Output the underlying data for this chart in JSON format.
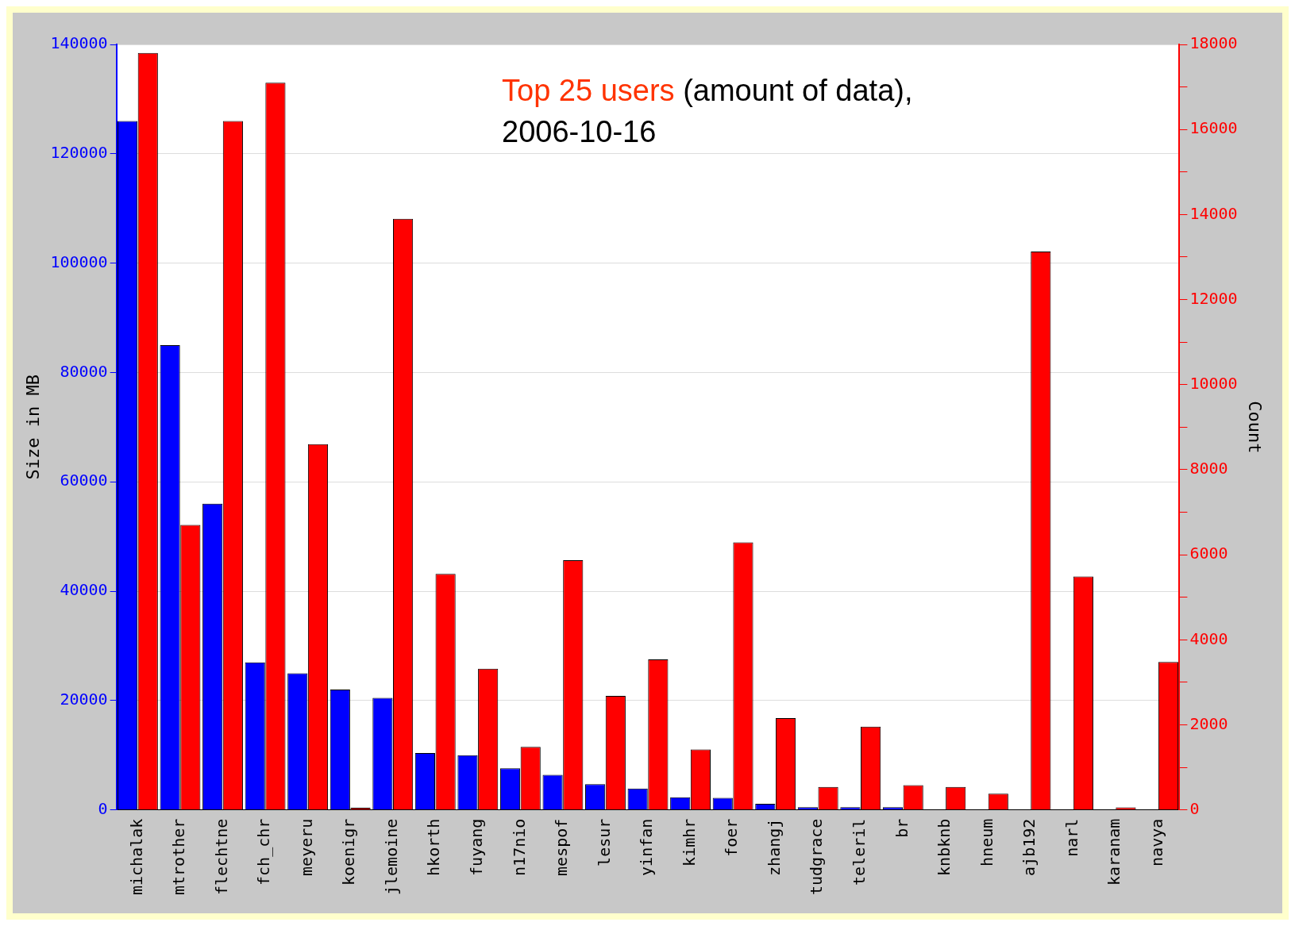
{
  "chart_data": {
    "type": "bar",
    "title": "Top 25 users",
    "subtitle": "(amount of data), 2006-10-16",
    "ylabel": "Size in MB",
    "y2label": "Count",
    "categories": [
      "michalak",
      "mtrother",
      "flechtne",
      "fch_chr",
      "meyeru",
      "koenigr",
      "jlemoine",
      "hkorth",
      "fuyang",
      "n17nio",
      "mespof",
      "lesur",
      "yinfan",
      "kimhr",
      "foer",
      "zhangj",
      "tudgrace",
      "teleril",
      "br",
      "knbknb",
      "hneum",
      "ajb192",
      "narl",
      "karanam",
      "navya"
    ],
    "series": [
      {
        "color": "#0000ff",
        "values": [
          126000,
          85000,
          56000,
          27000,
          25000,
          22000,
          20500,
          10400,
          10000,
          7600,
          6400,
          4700,
          3900,
          2300,
          2200,
          1100,
          500,
          500,
          500,
          0,
          0,
          0,
          0,
          0,
          0
        ]
      },
      {
        "color": "#ff0000",
        "axis": "y2",
        "values": [
          17800,
          6700,
          16200,
          17100,
          8600,
          50,
          13900,
          5550,
          3320,
          1480,
          5870,
          2680,
          3540,
          1420,
          6290,
          2160,
          540,
          1960,
          580,
          540,
          380,
          13130,
          5490,
          60,
          3480
        ]
      }
    ],
    "ylim": [
      0,
      140000
    ],
    "yticks": [
      0,
      20000,
      40000,
      60000,
      80000,
      100000,
      120000,
      140000
    ],
    "y2lim": [
      0,
      18000
    ],
    "y2ticks": [
      0,
      {
        "value": 1000,
        "label": null
      },
      2000,
      {
        "value": 3000,
        "label": null
      },
      4000,
      {
        "value": 5000,
        "label": null
      },
      6000,
      {
        "value": 7000,
        "label": null
      },
      8000,
      {
        "value": 9000,
        "label": null
      },
      10000,
      {
        "value": 11000,
        "label": null
      },
      12000,
      {
        "value": 13000,
        "label": null
      },
      14000,
      {
        "value": 15000,
        "label": null
      },
      16000,
      {
        "value": 17000,
        "label": null
      },
      18000
    ],
    "grid": "y",
    "legend": false
  }
}
